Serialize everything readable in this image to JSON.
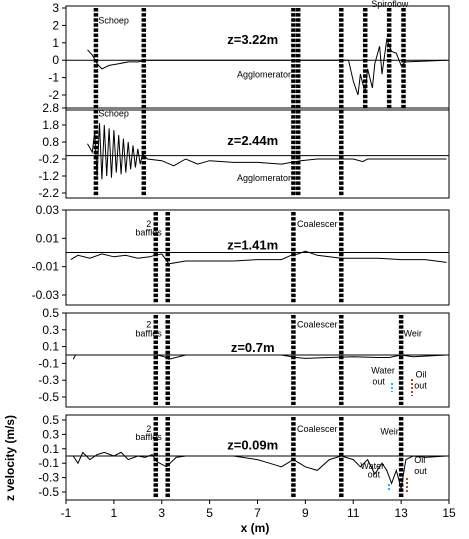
{
  "chart_data": [
    {
      "type": "line",
      "title": "z=3.22m",
      "yticks": [
        "3",
        "2",
        "1",
        "0",
        "-1",
        "-2"
      ],
      "ylim": [
        -2,
        3
      ],
      "xlim": [
        -1,
        15
      ],
      "baffles": [
        0.25,
        2.25,
        8.5,
        8.7,
        10.5,
        11.5,
        12.5,
        13.1
      ],
      "annotations": [
        {
          "text": "Schoep",
          "x": 0.35,
          "y": 2.1
        },
        {
          "text": "Agglomerator",
          "x": 8.4,
          "y": -1.0,
          "anchor": "end"
        },
        {
          "text": "Spiroflow",
          "x": 11.75,
          "y": 3.05
        }
      ],
      "series": [
        {
          "x": [
            -0.1,
            0.1,
            0.3,
            0.5,
            0.8,
            1.2,
            1.6,
            2.0,
            2.4,
            3,
            4,
            5,
            6,
            7,
            8,
            9,
            10,
            10.8,
            11.0,
            11.2,
            11.3,
            11.5,
            11.6,
            11.8,
            11.9,
            12.1,
            12.2,
            12.4,
            12.6,
            12.8,
            13.0,
            13.2,
            14.9
          ],
          "y": [
            0.6,
            0.3,
            -0.2,
            -0.5,
            -0.3,
            -0.2,
            -0.1,
            -0.1,
            0,
            0,
            0,
            0,
            0,
            0,
            0,
            0,
            0,
            0,
            -1.2,
            -2.0,
            -0.8,
            -1.9,
            -0.5,
            -1.6,
            -0.2,
            0.8,
            -0.8,
            1.2,
            0.5,
            0.4,
            -0.3,
            -0.1,
            0
          ]
        }
      ]
    },
    {
      "type": "line",
      "title": "z=2.44m",
      "yticks": [
        "2.8",
        "1.8",
        "0.8",
        "-0.2",
        "-1.2",
        "-2.2"
      ],
      "ylim": [
        -2.2,
        2.8
      ],
      "xlim": [
        -1,
        15
      ],
      "baffles": [
        0.25,
        2.25,
        8.5,
        8.7,
        10.5
      ],
      "annotations": [
        {
          "text": "Schoep",
          "x": 0.35,
          "y": 2.3
        },
        {
          "text": "Agglomerator",
          "x": 8.4,
          "y": -1.5,
          "anchor": "end"
        }
      ],
      "series": [
        {
          "x": [
            -0.1,
            0.1,
            0.2,
            0.3,
            0.4,
            0.5,
            0.6,
            0.7,
            0.8,
            0.9,
            1.0,
            1.1,
            1.2,
            1.3,
            1.4,
            1.5,
            1.6,
            1.7,
            1.8,
            1.9,
            2.0,
            2.1,
            2.2,
            2.4,
            3,
            3.5,
            4,
            4.5,
            5,
            6,
            7,
            8,
            8.8,
            9.5,
            10.5,
            11,
            11.4,
            11.6,
            12,
            13,
            14.9
          ],
          "y": [
            0.7,
            0.2,
            1.4,
            -1.2,
            1.9,
            -1.4,
            1.8,
            -1.2,
            1.6,
            -1.3,
            1.5,
            -1.0,
            1.2,
            -1.1,
            1.0,
            -1.0,
            0.8,
            -0.8,
            0.6,
            -0.7,
            0.4,
            -0.5,
            0.1,
            -0.2,
            -0.3,
            -0.6,
            -0.2,
            -0.5,
            -0.3,
            -0.4,
            -0.4,
            -0.5,
            -0.3,
            -0.2,
            -0.2,
            -0.2,
            -0.35,
            -0.2,
            -0.2,
            -0.2,
            -0.2
          ]
        }
      ]
    },
    {
      "type": "line",
      "title": "z=1.41m",
      "yticks": [
        "0.03",
        "0.01",
        "-0.01",
        "-0.03"
      ],
      "ylim": [
        -0.03,
        0.03
      ],
      "xlim": [
        -1,
        15
      ],
      "baffles": [
        2.75,
        3.25,
        8.5,
        10.5
      ],
      "annotations": [
        {
          "text": "2",
          "x": 2.35,
          "y": 0.018
        },
        {
          "text": "baffles",
          "x": 1.9,
          "y": 0.012
        },
        {
          "text": "Coalescer",
          "x": 8.65,
          "y": 0.018
        }
      ],
      "series": [
        {
          "x": [
            -0.8,
            -0.5,
            0,
            0.5,
            1,
            1.5,
            2,
            2.5,
            2.7,
            3,
            3.3,
            4,
            5,
            6,
            7,
            8,
            8.4,
            8.7,
            9,
            9.5,
            10,
            10.5,
            11,
            12,
            13,
            14,
            14.9
          ],
          "y": [
            -0.005,
            -0.002,
            -0.004,
            -0.001,
            -0.003,
            -0.002,
            -0.004,
            -0.003,
            -0.002,
            -0.001,
            -0.008,
            -0.006,
            -0.006,
            -0.006,
            -0.005,
            -0.005,
            -0.002,
            -0.001,
            0.001,
            -0.002,
            -0.003,
            -0.004,
            -0.004,
            -0.004,
            -0.005,
            -0.005,
            -0.007
          ]
        }
      ]
    },
    {
      "type": "line",
      "title": "z=0.7m",
      "yticks": [
        "0.5",
        "0.3",
        "0.1",
        "-0.1",
        "-0.3",
        "-0.5"
      ],
      "ylim": [
        -0.5,
        0.5
      ],
      "xlim": [
        -1,
        15
      ],
      "baffles": [
        2.75,
        3.25,
        8.5,
        10.5,
        13.0
      ],
      "annotations": [
        {
          "text": "2",
          "x": 2.35,
          "y": 0.33
        },
        {
          "text": "baffles",
          "x": 1.9,
          "y": 0.22
        },
        {
          "text": "Coalescer",
          "x": 8.65,
          "y": 0.33
        },
        {
          "text": "Weir",
          "x": 13.1,
          "y": 0.22
        },
        {
          "text": "Water",
          "x": 11.75,
          "y": -0.22
        },
        {
          "text": "out",
          "x": 11.8,
          "y": -0.35
        },
        {
          "text": "Oil",
          "x": 13.6,
          "y": -0.27
        },
        {
          "text": "out",
          "x": 13.55,
          "y": -0.4
        }
      ],
      "series": [
        {
          "x": [
            -0.7,
            -0.6,
            -0.5,
            0,
            1,
            2,
            2.8,
            3.1,
            3.3,
            4,
            5,
            6,
            7,
            8,
            8.6,
            9,
            10,
            11,
            12,
            12.5,
            13,
            13.5,
            14.9
          ],
          "y": [
            -0.05,
            0.0,
            0.0,
            0.0,
            0.0,
            0.0,
            0.0,
            -0.02,
            -0.05,
            0.0,
            0.0,
            0.0,
            0.0,
            0.0,
            -0.03,
            -0.04,
            -0.03,
            -0.02,
            -0.03,
            -0.03,
            0.0,
            -0.02,
            0.0
          ]
        }
      ]
    },
    {
      "type": "line",
      "title": "z=0.09m",
      "yticks": [
        "0.5",
        "0.3",
        "0.1",
        "-0.1",
        "-0.3",
        "-0.5"
      ],
      "ylim": [
        -0.5,
        0.5
      ],
      "xlim": [
        -1,
        15
      ],
      "xticks": [
        "-1",
        "1",
        "3",
        "5",
        "7",
        "9",
        "11",
        "13",
        "15"
      ],
      "xlabel": "x (m)",
      "ylabel": "z velocity (m/s)",
      "baffles": [
        2.75,
        3.25,
        8.5,
        10.5,
        13.0
      ],
      "annotations": [
        {
          "text": "2",
          "x": 2.35,
          "y": 0.33
        },
        {
          "text": "baffles",
          "x": 1.9,
          "y": 0.22
        },
        {
          "text": "Coalescer",
          "x": 8.65,
          "y": 0.33
        },
        {
          "text": "Weir",
          "x": 12.9,
          "y": 0.3,
          "anchor": "end"
        },
        {
          "text": "Water",
          "x": 11.3,
          "y": -0.18
        },
        {
          "text": "out",
          "x": 11.6,
          "y": -0.3
        },
        {
          "text": "Oil",
          "x": 13.55,
          "y": -0.1
        },
        {
          "text": "out",
          "x": 13.55,
          "y": -0.25
        }
      ],
      "series": [
        {
          "x": [
            -0.7,
            -0.5,
            -0.3,
            0,
            0.3,
            0.6,
            1,
            1.3,
            1.6,
            2,
            2.3,
            2.6,
            2.8,
            3.2,
            3.6,
            4,
            5,
            6,
            7,
            7.5,
            8,
            8.5,
            9,
            9.5,
            10,
            10.5,
            11,
            11.3,
            11.6,
            11.9,
            12.2,
            12.4,
            12.6,
            12.8,
            13,
            13.2,
            13.5,
            14,
            14.9
          ],
          "y": [
            0.0,
            -0.1,
            0.05,
            -0.05,
            0.02,
            0.05,
            0.0,
            0.05,
            -0.05,
            0.0,
            -0.02,
            0.02,
            -0.08,
            -0.15,
            -0.02,
            0.0,
            0.0,
            0.0,
            -0.05,
            -0.1,
            -0.15,
            -0.05,
            -0.15,
            -0.2,
            -0.05,
            0.0,
            -0.05,
            -0.15,
            -0.05,
            -0.25,
            -0.1,
            -0.2,
            -0.38,
            -0.2,
            -0.45,
            -0.05,
            0.0,
            -0.02,
            0.0
          ]
        }
      ]
    }
  ]
}
